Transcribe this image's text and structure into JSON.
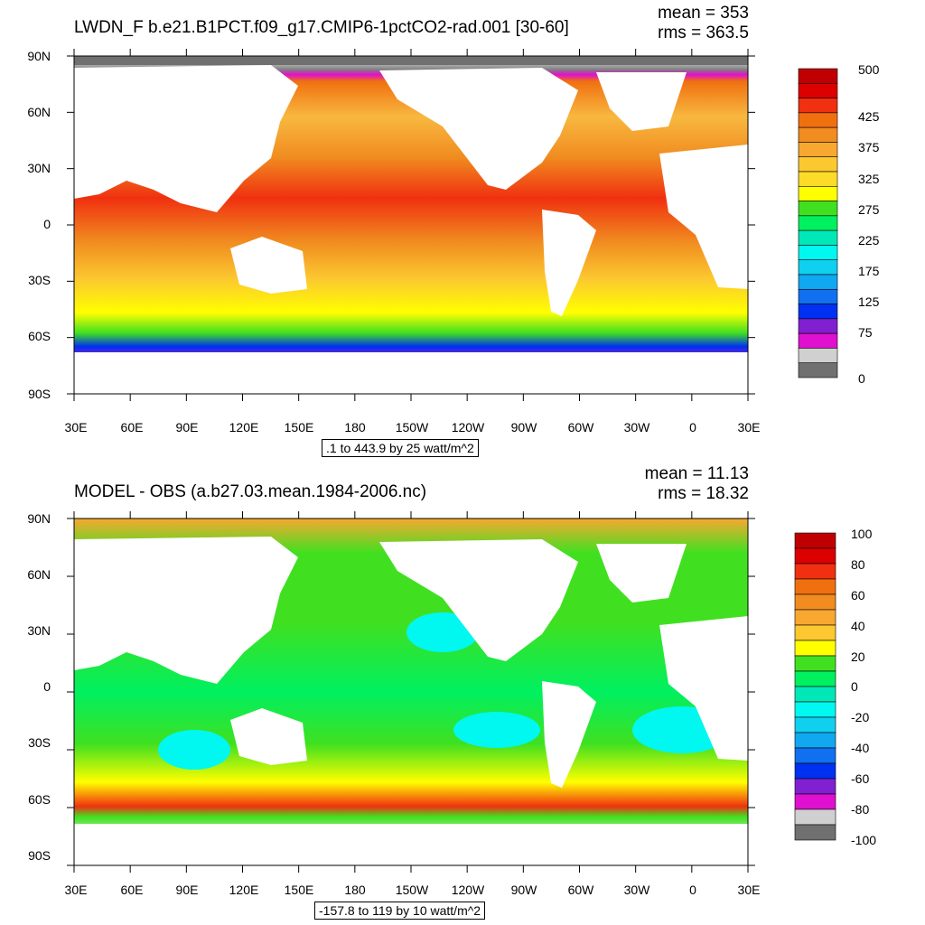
{
  "tick_labels": {
    "lat": [
      "90N",
      "60N",
      "30N",
      "0",
      "30S",
      "60S",
      "90S"
    ],
    "lon": [
      "30E",
      "60E",
      "90E",
      "120E",
      "150E",
      "180",
      "150W",
      "120W",
      "90W",
      "60W",
      "30W",
      "0",
      "30E"
    ]
  },
  "panels": [
    {
      "title": "LWDN_F b.e21.B1PCT.f09_g17.CMIP6-1pctCO2-rad.001 [30-60]",
      "mean": "mean = 353",
      "rms": "rms = 363.5",
      "subtitle": ".1 to 443.9 by 25 watt/m^2",
      "colorbar": {
        "labels": [
          "500",
          "425",
          "375",
          "325",
          "275",
          "225",
          "175",
          "125",
          "75",
          "0"
        ],
        "colors": [
          "#c00000",
          "#dd0000",
          "#f03010",
          "#f07010",
          "#f08c20",
          "#f8a830",
          "#fcc830",
          "#fcdc28",
          "#ffff00",
          "#40e020",
          "#00f060",
          "#00e8b8",
          "#00f8f0",
          "#10d0f0",
          "#10a8f0",
          "#1070f0",
          "#0030f0",
          "#8020d0",
          "#e010d0",
          "#d0d0d0",
          "#707070"
        ]
      }
    },
    {
      "title": "MODEL - OBS (a.b27.03.mean.1984-2006.nc)",
      "mean": "mean = 11.13",
      "rms": "rms = 18.32",
      "subtitle": "-157.8 to 119 by 10 watt/m^2",
      "colorbar": {
        "labels": [
          "100",
          "80",
          "60",
          "40",
          "20",
          "0",
          "-20",
          "-40",
          "-60",
          "-80",
          "-100"
        ],
        "colors": [
          "#c00000",
          "#dd0000",
          "#f03010",
          "#f07010",
          "#f08c20",
          "#f8a830",
          "#fcc830",
          "#ffff00",
          "#40e020",
          "#00f060",
          "#00e8b8",
          "#00f8f0",
          "#10d0f0",
          "#10a8f0",
          "#1070f0",
          "#0030f0",
          "#8020d0",
          "#e010d0",
          "#d0d0d0",
          "#707070"
        ]
      }
    }
  ]
}
